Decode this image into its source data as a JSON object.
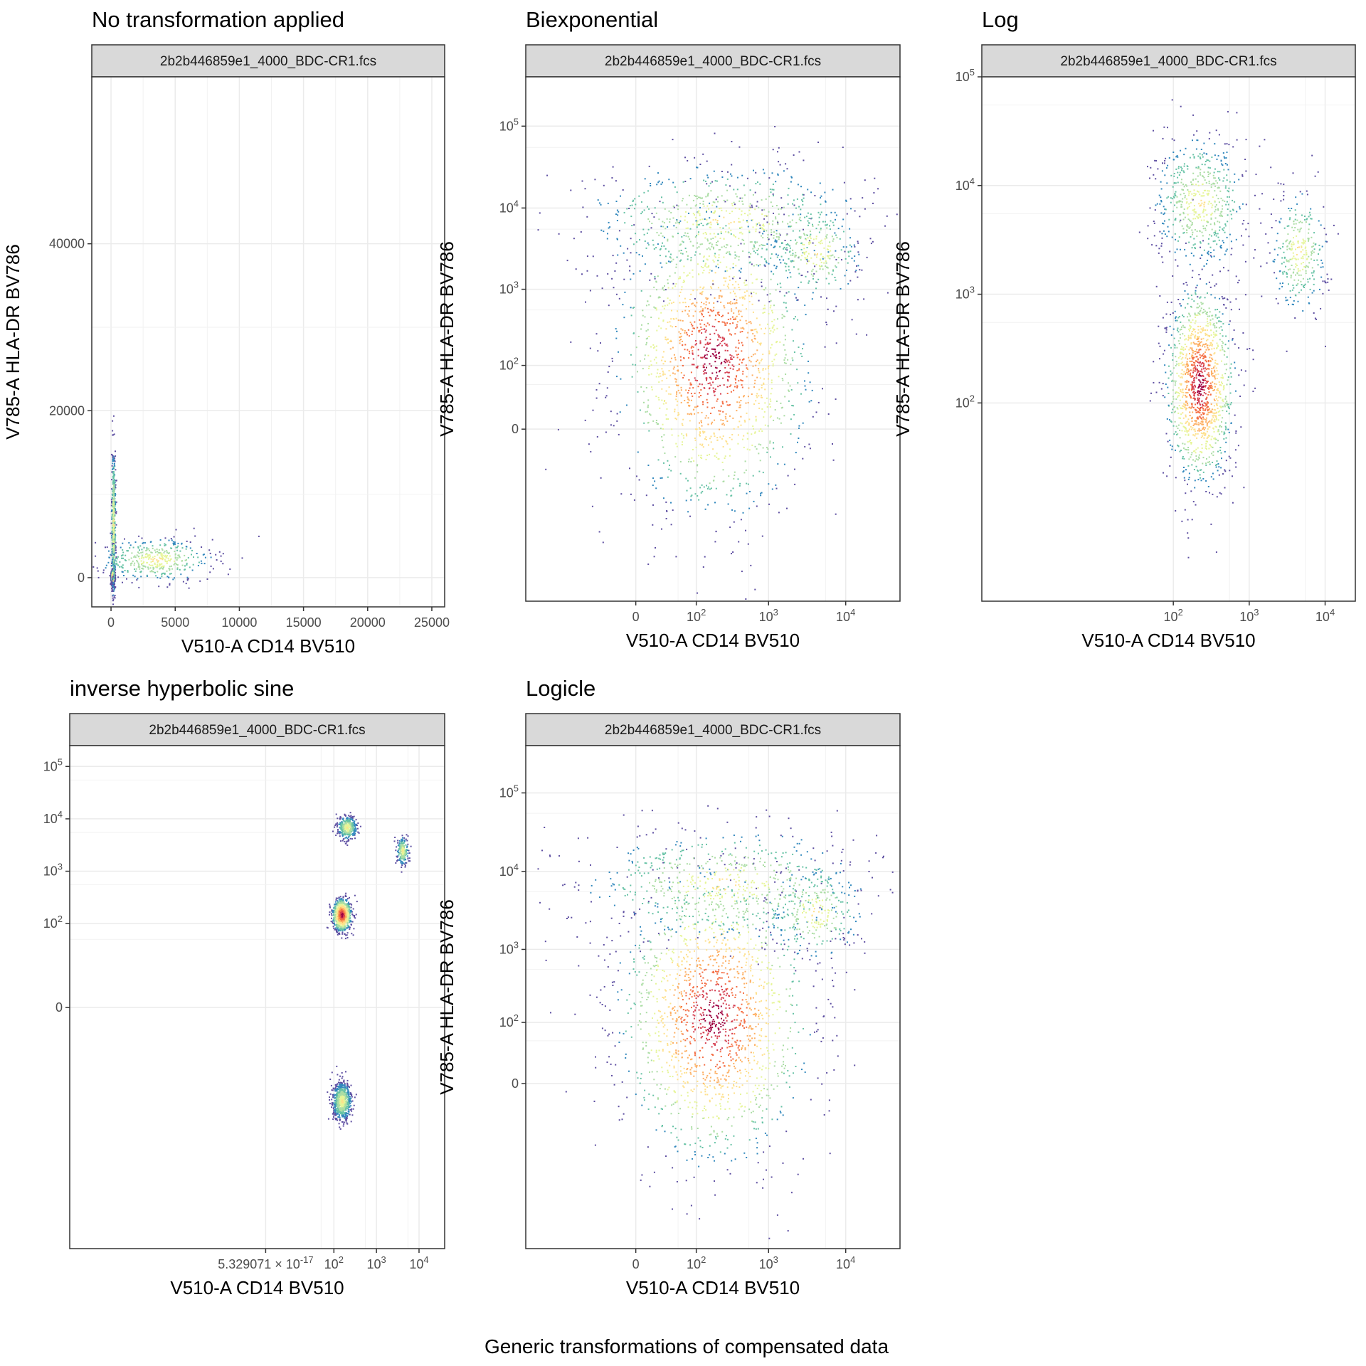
{
  "caption": "Generic transformations of compensated data",
  "palette": [
    "#5e4fa2",
    "#3288bd",
    "#66c2a5",
    "#abdda4",
    "#e6f598",
    "#fee08b",
    "#fdae61",
    "#f46d43",
    "#d53e4f",
    "#9e0142"
  ],
  "chart_data": [
    {
      "type": "scatter",
      "title": "No transformation applied",
      "strip": "2b2b446859e1_4000_BDC-CR1.fcs",
      "xlabel": "V510-A CD14 BV510",
      "ylabel": "V785-A HLA-DR BV786",
      "x_scale": "linear",
      "y_scale": "linear",
      "xlim": [
        -1500,
        26000
      ],
      "ylim": [
        -3500,
        60000
      ],
      "x_ticks": [
        0,
        5000,
        10000,
        15000,
        20000,
        25000
      ],
      "x_tick_labels": [
        "0",
        "5000",
        "10000",
        "15000",
        "20000",
        "25000"
      ],
      "y_ticks": [
        0,
        20000,
        40000
      ],
      "y_tick_labels": [
        "0",
        "20000",
        "40000"
      ],
      "grid": true,
      "populations": [
        {
          "x": 100,
          "y": 150,
          "sx": 60,
          "sy": 400,
          "weight": 0.62
        },
        {
          "x": 150,
          "y": 6500,
          "sx": 80,
          "sy": 4500,
          "weight": 0.2
        },
        {
          "x": 3500,
          "y": 2200,
          "sx": 2200,
          "sy": 1300,
          "weight": 0.16
        }
      ]
    },
    {
      "type": "scatter",
      "title": "Biexponential",
      "strip": "2b2b446859e1_4000_BDC-CR1.fcs",
      "xlabel": "V510-A CD14 BV510",
      "ylabel": "V785-A HLA-DR BV786",
      "x_scale": "biexponential",
      "y_scale": "biexponential",
      "xlim": [
        -500,
        50000
      ],
      "ylim": [
        -2500,
        400000
      ],
      "x_ticks": [
        0,
        100,
        1000,
        10000
      ],
      "x_tick_labels": [
        "0",
        "10^2",
        "10^3",
        "10^4"
      ],
      "y_ticks": [
        0,
        100,
        1000,
        10000,
        100000
      ],
      "y_tick_labels": [
        "0",
        "10^2",
        "10^3",
        "10^4",
        "10^5"
      ],
      "grid": true,
      "populations": [
        {
          "x": 180,
          "y": 120,
          "sx": 0.6,
          "sy": 0.9,
          "weight": 0.62
        },
        {
          "x": 250,
          "y": 7000,
          "sx": 0.9,
          "sy": 0.35,
          "weight": 0.24
        },
        {
          "x": 4000,
          "y": 3000,
          "sx": 0.3,
          "sy": 0.3,
          "weight": 0.1
        }
      ]
    },
    {
      "type": "scatter",
      "title": "Log",
      "strip": "2b2b446859e1_4000_BDC-CR1.fcs",
      "xlabel": "V510-A CD14 BV510",
      "ylabel": "V785-A HLA-DR BV786",
      "x_scale": "log",
      "y_scale": "log",
      "xlim": [
        0.3,
        25000
      ],
      "ylim": [
        1.5,
        100000
      ],
      "x_ticks": [
        100,
        1000,
        10000
      ],
      "x_tick_labels": [
        "10^2",
        "10^3",
        "10^4"
      ],
      "y_ticks": [
        100,
        1000,
        10000,
        100000
      ],
      "y_tick_labels": [
        "10^2",
        "10^3",
        "10^4",
        "10^5"
      ],
      "grid": true,
      "populations": [
        {
          "x": 220,
          "y": 150,
          "sx": 0.22,
          "sy": 0.45,
          "weight": 0.5
        },
        {
          "x": 220,
          "y": 7000,
          "sx": 0.3,
          "sy": 0.3,
          "weight": 0.22
        },
        {
          "x": 4500,
          "y": 2500,
          "sx": 0.18,
          "sy": 0.28,
          "weight": 0.12
        }
      ]
    },
    {
      "type": "scatter",
      "title": "inverse hyperbolic sine",
      "strip": "2b2b446859e1_4000_BDC-CR1.fcs",
      "xlabel": "V510-A CD14 BV510",
      "ylabel": "V785-A HLA-DR BV786",
      "x_scale": "asinh",
      "y_scale": "asinh",
      "xlim": [
        -100000,
        40000
      ],
      "ylim": [
        -100000,
        250000
      ],
      "x_ticks": [
        5.329071e-17,
        100,
        1000,
        10000
      ],
      "x_tick_labels": [
        "5.329071 × 10^-17",
        "10^2",
        "10^3",
        "10^4"
      ],
      "y_ticks": [
        0,
        100,
        1000,
        10000,
        100000
      ],
      "y_tick_labels": [
        "0",
        "10^2",
        "10^3",
        "10^4",
        "10^5"
      ],
      "grid": true,
      "populations": [
        {
          "x": 150,
          "y": 150,
          "sx": 0.25,
          "sy": 0.35,
          "weight": 0.35
        },
        {
          "x": 150,
          "y": -150,
          "sx": 0.25,
          "sy": 0.4,
          "weight": 0.3
        },
        {
          "x": 200,
          "y": 7000,
          "sx": 0.25,
          "sy": 0.25,
          "weight": 0.15
        },
        {
          "x": 4000,
          "y": 2500,
          "sx": 0.15,
          "sy": 0.3,
          "weight": 0.08
        }
      ]
    },
    {
      "type": "scatter",
      "title": "Logicle",
      "strip": "2b2b446859e1_4000_BDC-CR1.fcs",
      "xlabel": "V510-A CD14 BV510",
      "ylabel": "V785-A HLA-DR BV786",
      "x_scale": "logicle",
      "y_scale": "logicle",
      "xlim": [
        -500,
        50000
      ],
      "ylim": [
        -2500,
        400000
      ],
      "x_ticks": [
        0,
        100,
        1000,
        10000
      ],
      "x_tick_labels": [
        "0",
        "10^2",
        "10^3",
        "10^4"
      ],
      "y_ticks": [
        0,
        100,
        1000,
        10000,
        100000
      ],
      "y_tick_labels": [
        "0",
        "10^2",
        "10^3",
        "10^4",
        "10^5"
      ],
      "grid": true,
      "populations": [
        {
          "x": 180,
          "y": 120,
          "sx": 0.6,
          "sy": 0.9,
          "weight": 0.62
        },
        {
          "x": 250,
          "y": 7000,
          "sx": 0.9,
          "sy": 0.35,
          "weight": 0.24
        },
        {
          "x": 4000,
          "y": 3000,
          "sx": 0.3,
          "sy": 0.3,
          "weight": 0.1
        }
      ]
    }
  ]
}
